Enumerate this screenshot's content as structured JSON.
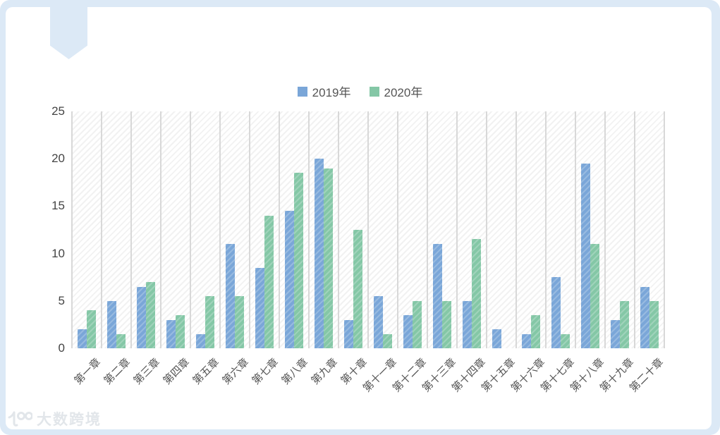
{
  "page": {
    "border_color": "#dce9f6",
    "watermark": {
      "icon": "100-logo",
      "text": "大数跨境"
    }
  },
  "chart_data": {
    "type": "bar",
    "title": "",
    "categories": [
      "第一章",
      "第二章",
      "第三章",
      "第四章",
      "第五章",
      "第六章",
      "第七章",
      "第八章",
      "第九章",
      "第十章",
      "第十一章",
      "第十二章",
      "第十三章",
      "第十四章",
      "第十五章",
      "第十六章",
      "第十七章",
      "第十八章",
      "第十九章",
      "第二十章"
    ],
    "series": [
      {
        "name": "2019年",
        "color": "#7aa6d8",
        "values": [
          2,
          5,
          6.5,
          3,
          1.5,
          11,
          8.5,
          14.5,
          20,
          3,
          5.5,
          3.5,
          11,
          5,
          2,
          1.5,
          7.5,
          19.5,
          3,
          6.5
        ]
      },
      {
        "name": "2020年",
        "color": "#84c7a6",
        "values": [
          4,
          1.5,
          7,
          3.5,
          5.5,
          5.5,
          14,
          18.5,
          19,
          12.5,
          1.5,
          5,
          5,
          11.5,
          0,
          3.5,
          1.5,
          11,
          5,
          5
        ]
      }
    ],
    "xlabel": "",
    "ylabel": "",
    "ylim": [
      0,
      25
    ],
    "yticks": [
      25,
      20,
      15,
      10,
      5,
      0
    ],
    "legend_position": "top-center",
    "grid": "vertical-only",
    "plot_background": "diagonal-hatch"
  }
}
